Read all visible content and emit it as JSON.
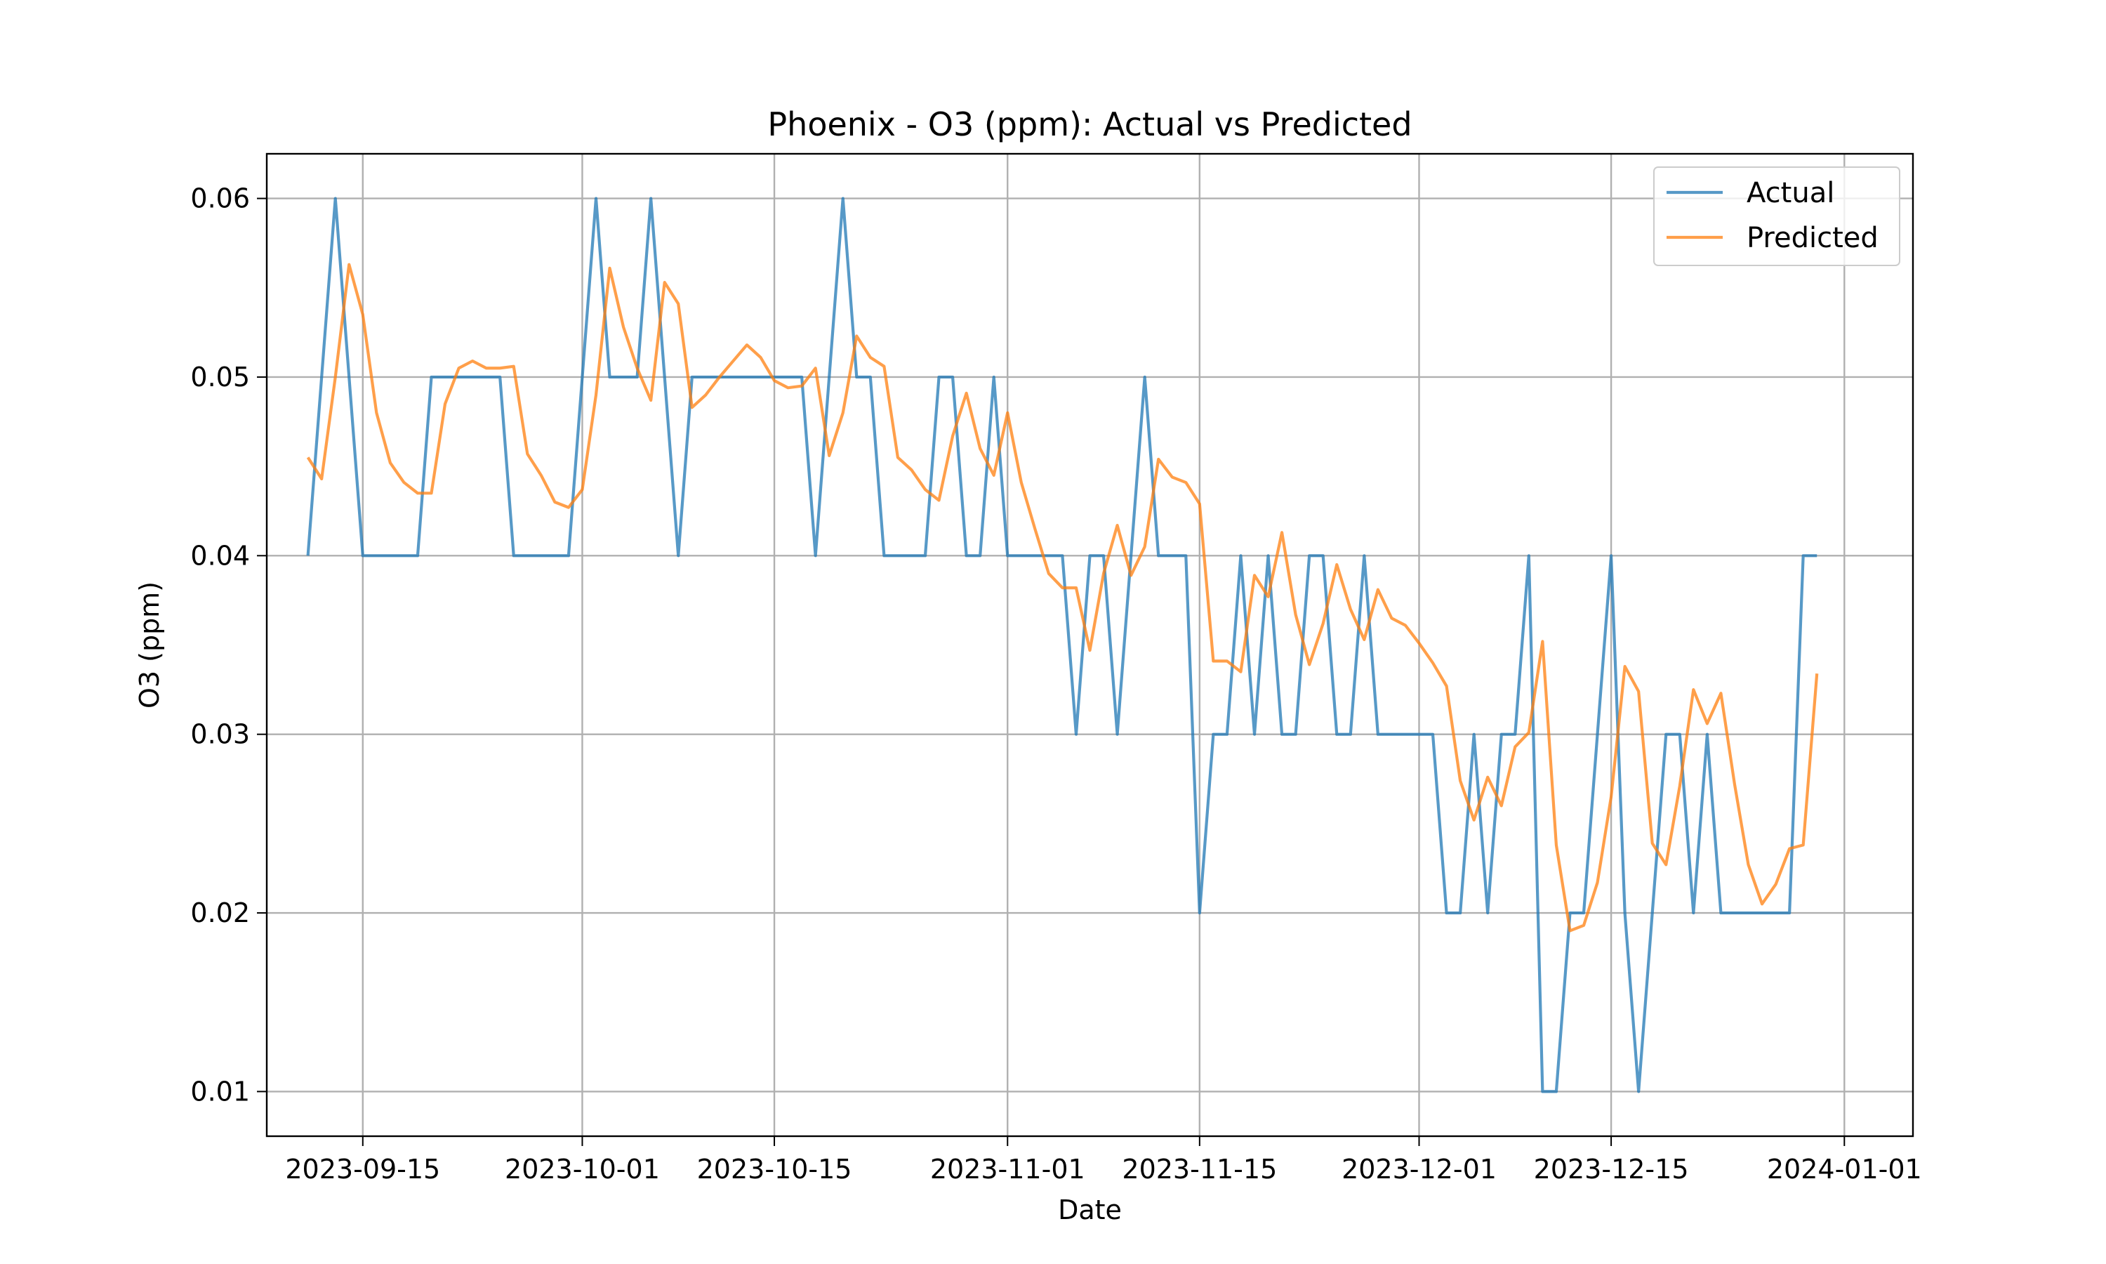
{
  "chart_data": {
    "type": "line",
    "title": "Phoenix - O3 (ppm): Actual vs Predicted",
    "xlabel": "Date",
    "ylabel": "O3 (ppm)",
    "x_start": "2023-09-11",
    "xlim": [
      "2023-09-08",
      "2024-01-06"
    ],
    "ylim": [
      0.0075,
      0.0625
    ],
    "x_ticks": [
      "2023-09-15",
      "2023-10-01",
      "2023-10-15",
      "2023-11-01",
      "2023-11-15",
      "2023-12-01",
      "2023-12-15",
      "2024-01-01"
    ],
    "y_ticks": [
      0.01,
      0.02,
      0.03,
      0.04,
      0.05,
      0.06
    ],
    "y_tick_labels": [
      "0.01",
      "0.02",
      "0.03",
      "0.04",
      "0.05",
      "0.06"
    ],
    "grid": true,
    "legend_position": "top-right",
    "series": [
      {
        "name": "Actual",
        "color": "#1f77b4",
        "values": [
          0.04,
          0.05,
          0.06,
          0.05,
          0.04,
          0.04,
          0.04,
          0.04,
          0.04,
          0.05,
          0.05,
          0.05,
          0.05,
          0.05,
          0.05,
          0.04,
          0.04,
          0.04,
          0.04,
          0.04,
          0.05,
          0.06,
          0.05,
          0.05,
          0.05,
          0.06,
          0.05,
          0.04,
          0.05,
          0.05,
          0.05,
          0.05,
          0.05,
          0.05,
          0.05,
          0.05,
          0.05,
          0.04,
          0.05,
          0.06,
          0.05,
          0.05,
          0.04,
          0.04,
          0.04,
          0.04,
          0.05,
          0.05,
          0.04,
          0.04,
          0.05,
          0.04,
          0.04,
          0.04,
          0.04,
          0.04,
          0.03,
          0.04,
          0.04,
          0.03,
          0.04,
          0.05,
          0.04,
          0.04,
          0.04,
          0.02,
          0.03,
          0.03,
          0.04,
          0.03,
          0.04,
          0.03,
          0.03,
          0.04,
          0.04,
          0.03,
          0.03,
          0.04,
          0.03,
          0.03,
          0.03,
          0.03,
          0.03,
          0.02,
          0.02,
          0.03,
          0.02,
          0.03,
          0.03,
          0.04,
          0.01,
          0.01,
          0.02,
          0.02,
          0.03,
          0.04,
          0.02,
          0.01,
          0.02,
          0.03,
          0.03,
          0.02,
          0.03,
          0.02,
          0.02,
          0.02,
          0.02,
          0.02,
          0.02,
          0.04,
          0.04
        ]
      },
      {
        "name": "Predicted",
        "color": "#ff7f0e",
        "values": [
          0.0455,
          0.0443,
          0.05,
          0.0563,
          0.0535,
          0.048,
          0.0452,
          0.0441,
          0.0435,
          0.0435,
          0.0485,
          0.0505,
          0.0509,
          0.0505,
          0.0505,
          0.0506,
          0.0457,
          0.0445,
          0.043,
          0.0427,
          0.0437,
          0.049,
          0.0561,
          0.0528,
          0.0505,
          0.0487,
          0.0553,
          0.0541,
          0.0483,
          0.049,
          0.05,
          0.0509,
          0.0518,
          0.0511,
          0.0498,
          0.0494,
          0.0495,
          0.0505,
          0.0456,
          0.048,
          0.0523,
          0.0511,
          0.0506,
          0.0455,
          0.0448,
          0.0437,
          0.0431,
          0.0467,
          0.0491,
          0.046,
          0.0445,
          0.048,
          0.0441,
          0.0415,
          0.039,
          0.0382,
          0.0382,
          0.0347,
          0.039,
          0.0417,
          0.0389,
          0.0405,
          0.0454,
          0.0444,
          0.0441,
          0.0429,
          0.0341,
          0.0341,
          0.0335,
          0.0389,
          0.0377,
          0.0413,
          0.0367,
          0.0339,
          0.0362,
          0.0395,
          0.037,
          0.0353,
          0.0381,
          0.0365,
          0.0361,
          0.0351,
          0.034,
          0.0327,
          0.0274,
          0.0252,
          0.0276,
          0.026,
          0.0293,
          0.0301,
          0.0352,
          0.0238,
          0.019,
          0.0193,
          0.0217,
          0.0265,
          0.0338,
          0.0324,
          0.0239,
          0.0227,
          0.0271,
          0.0325,
          0.0306,
          0.0323,
          0.0272,
          0.0227,
          0.0205,
          0.0216,
          0.0236,
          0.0238,
          0.0334
        ]
      }
    ]
  }
}
